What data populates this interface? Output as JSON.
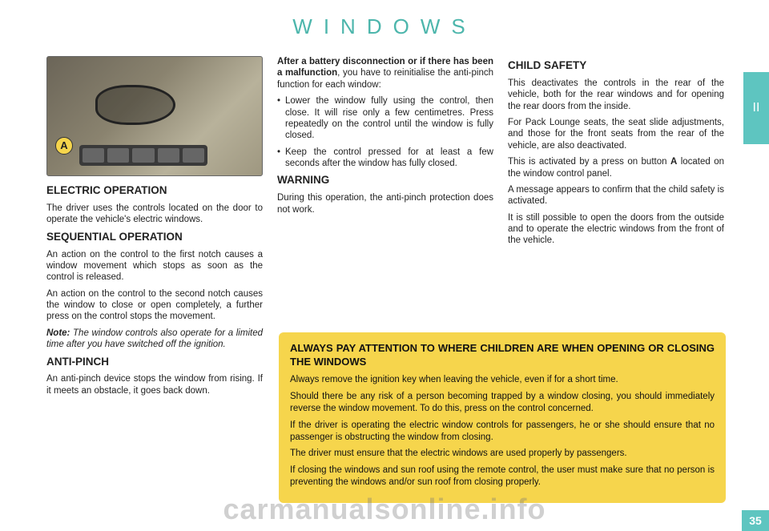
{
  "colors": {
    "accent": "#5ec5c0",
    "title": "#4db6ac",
    "warning_bg": "#f6d54c",
    "text": "#222222",
    "watermark": "rgba(120,120,120,0.35)"
  },
  "page": {
    "title": "WINDOWS",
    "section_tab": "II",
    "page_number": "35",
    "watermark": "carmanualsonline.info"
  },
  "photo": {
    "label_a": "A"
  },
  "col1": {
    "h_electric": "ELECTRIC OPERATION",
    "p_electric": "The driver uses the controls located on the door to operate the vehicle's electric windows.",
    "h_sequential": "SEQUENTIAL OPERATION",
    "p_seq1": "An action on the control to the first notch causes a window movement which stops as soon as the control is released.",
    "p_seq2": "An action on the control to the second notch causes the window to close or open completely, a further press on the control stops the movement.",
    "p_note_label": "Note:",
    "p_note": " The window controls also operate for a limited time after you have switched off the ignition.",
    "h_antipinch": "ANTI-PINCH",
    "p_antipinch": "An anti-pinch device stops the window from rising. If it meets an obstacle, it goes back down."
  },
  "col2": {
    "p_intro1": "After a battery disconnection or if there has been a malfunction",
    "p_intro2": ", you have to reinitialise the anti-pinch function for each window:",
    "b1": "Lower the window fully using the control, then close. It will rise only a few centimetres. Press repeatedly on the control until the window is fully closed.",
    "b2": "Keep the control pressed for at least a few seconds after the window has fully closed.",
    "h_warning": "WARNING",
    "p_warning": "During this operation, the anti-pinch protection does not work."
  },
  "col3": {
    "h_child": "CHILD SAFETY",
    "p1": "This deactivates the controls in the rear of the vehicle, both for the rear windows and for opening the rear doors from the inside.",
    "p2": "For Pack Lounge seats, the seat slide adjustments, and those for the front seats from the rear of the vehicle, are also deactivated.",
    "p3a": "This is activated by a press on button ",
    "p3b": "A",
    "p3c": " located on the window control panel.",
    "p4": "A message appears to confirm that the child safety is activated.",
    "p5": "It is still possible to open the doors from the outside and to operate the electric windows from the front of the vehicle."
  },
  "warning_box": {
    "title": "ALWAYS PAY ATTENTION TO WHERE CHILDREN ARE WHEN OPENING OR CLOSING THE WINDOWS",
    "p1": "Always remove the ignition key when leaving the vehicle, even if for a short time.",
    "p2": "Should there be any risk of a person becoming trapped by a window closing, you should immediately reverse the window movement. To do this, press on the control concerned.",
    "p3": "If the driver is operating the electric window controls for passengers, he or she should ensure that no passenger is obstructing the window from closing.",
    "p4": "The driver must ensure that the electric windows are used properly by passengers.",
    "p5": "If closing the windows and sun roof using the remote control, the user must make sure that no person is preventing the windows and/or sun roof from closing properly."
  }
}
